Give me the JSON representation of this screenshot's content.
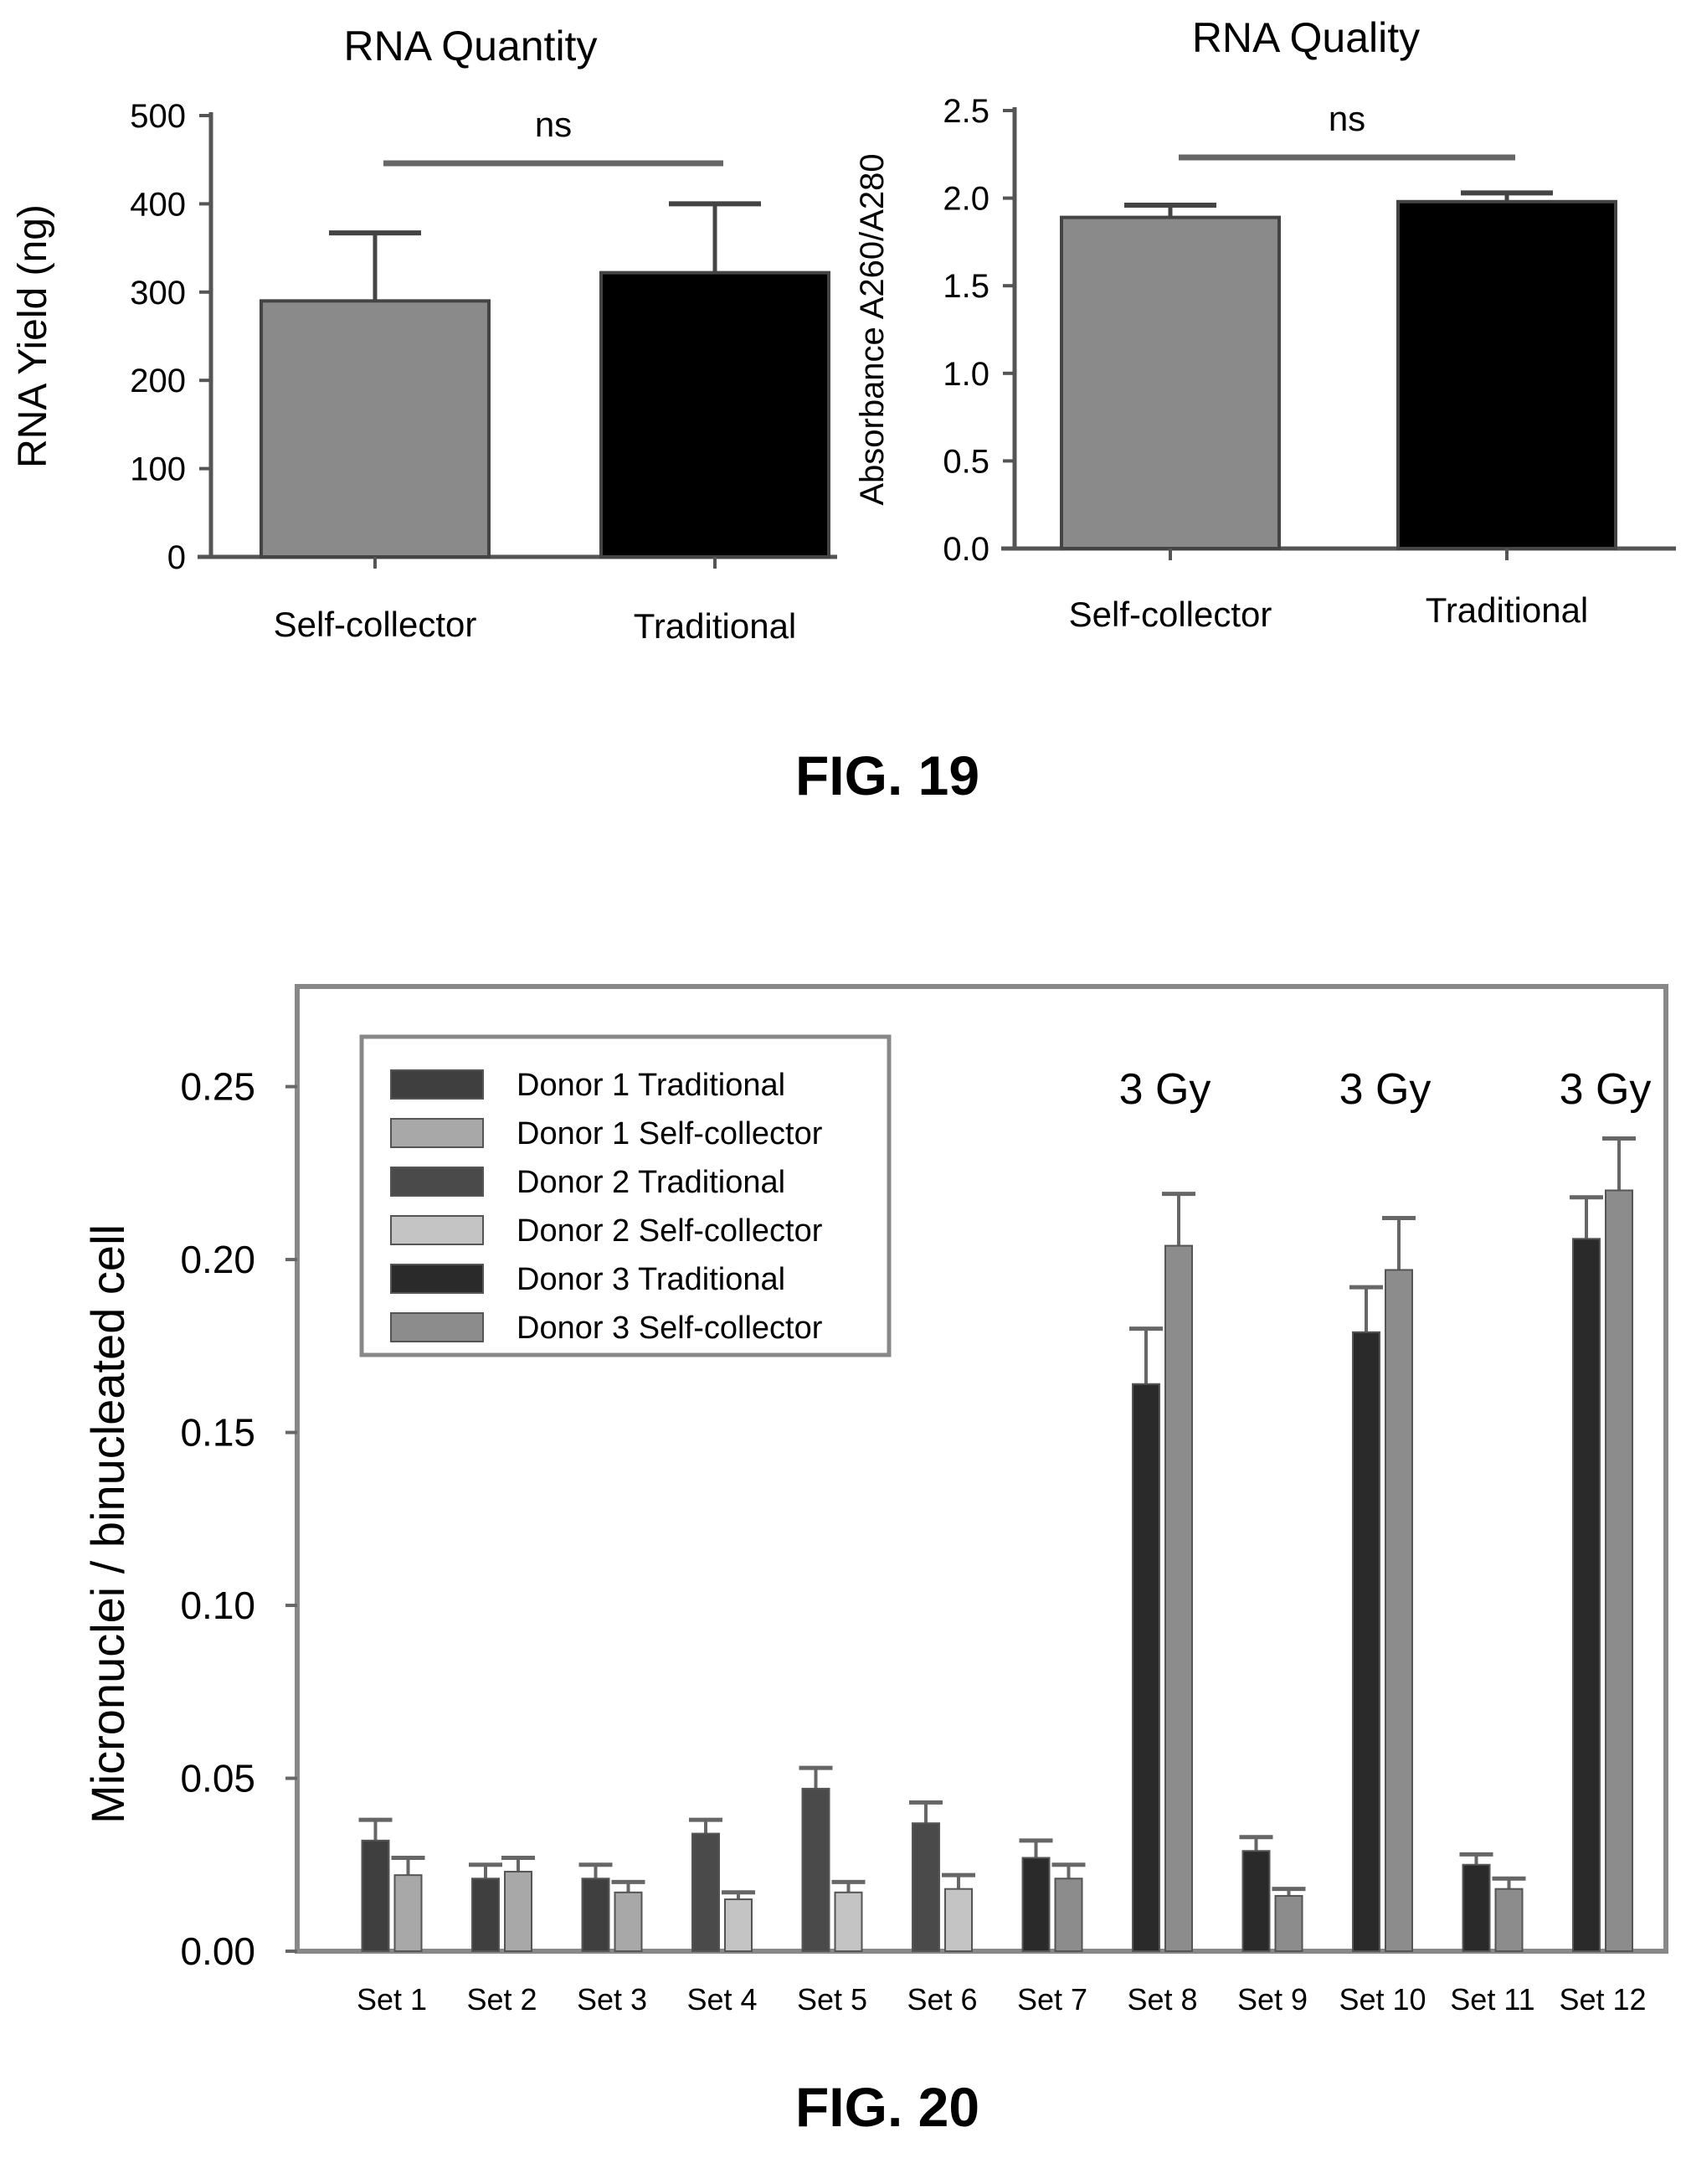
{
  "figures": {
    "fig19_label": "FIG. 19",
    "fig20_label": "FIG. 20"
  },
  "chart_data": [
    {
      "type": "bar",
      "title": "RNA Quantity",
      "ylabel": "RNA Yield (ng)",
      "xlabel": "",
      "categories": [
        "Self-collector",
        "Traditional"
      ],
      "values": [
        290,
        322
      ],
      "errors": [
        77,
        78
      ],
      "colors": [
        "#8a8a8a",
        "#000000"
      ],
      "ylim": [
        0,
        500
      ],
      "yticks": [
        0,
        100,
        200,
        300,
        400,
        500
      ],
      "ytick_labels": [
        "0",
        "100",
        "200",
        "300",
        "400",
        "500"
      ],
      "annotation": "ns"
    },
    {
      "type": "bar",
      "title": "RNA Quality",
      "ylabel": "Absorbance A260/A280",
      "xlabel": "",
      "categories": [
        "Self-collector",
        "Traditional"
      ],
      "values": [
        1.89,
        1.98
      ],
      "errors": [
        0.07,
        0.05
      ],
      "colors": [
        "#8a8a8a",
        "#000000"
      ],
      "ylim": [
        0,
        2.5
      ],
      "yticks": [
        0,
        0.5,
        1.0,
        1.5,
        2.0,
        2.5
      ],
      "ytick_labels": [
        "0.0",
        "0.5",
        "1.0",
        "1.5",
        "2.0",
        "2.5"
      ],
      "annotation": "ns"
    },
    {
      "type": "bar",
      "title": "",
      "xlabel": "",
      "ylabel": "Micronuclei / binucleated cell",
      "ylim": [
        0,
        0.27
      ],
      "yticks": [
        0,
        0.05,
        0.1,
        0.15,
        0.2,
        0.25
      ],
      "ytick_labels": [
        "0.00",
        "0.05",
        "0.10",
        "0.15",
        "0.20",
        "0.25"
      ],
      "legend_position": "top-left",
      "categories": [
        "Set 1",
        "Set 2",
        "Set 3",
        "Set 4",
        "Set 5",
        "Set 6",
        "Set 7",
        "Set 8",
        "Set 9",
        "Set 10",
        "Set 11",
        "Set 12"
      ],
      "series": [
        {
          "name": "Donor 1 Traditional",
          "color": "#3f3f3f"
        },
        {
          "name": "Donor 1 Self-collector",
          "color": "#a8a8a8"
        },
        {
          "name": "Donor 2 Traditional",
          "color": "#4a4a4a"
        },
        {
          "name": "Donor 2 Self-collector",
          "color": "#c4c4c4"
        },
        {
          "name": "Donor 3 Traditional",
          "color": "#2a2a2a"
        },
        {
          "name": "Donor 3 Self-collector",
          "color": "#8c8c8c"
        }
      ],
      "values": [
        {
          "traditional": 0.032,
          "traditional_error": 0.006,
          "self_collector": 0.022,
          "self_collector_error": 0.005,
          "series": [
            0,
            1
          ]
        },
        {
          "traditional": 0.021,
          "traditional_error": 0.004,
          "self_collector": 0.023,
          "self_collector_error": 0.004,
          "series": [
            0,
            1
          ]
        },
        {
          "traditional": 0.021,
          "traditional_error": 0.004,
          "self_collector": 0.017,
          "self_collector_error": 0.003,
          "series": [
            0,
            1
          ]
        },
        {
          "traditional": 0.034,
          "traditional_error": 0.004,
          "self_collector": 0.015,
          "self_collector_error": 0.002,
          "series": [
            2,
            3
          ]
        },
        {
          "traditional": 0.047,
          "traditional_error": 0.006,
          "self_collector": 0.017,
          "self_collector_error": 0.003,
          "series": [
            2,
            3
          ]
        },
        {
          "traditional": 0.037,
          "traditional_error": 0.006,
          "self_collector": 0.018,
          "self_collector_error": 0.004,
          "series": [
            2,
            3
          ]
        },
        {
          "traditional": 0.027,
          "traditional_error": 0.005,
          "self_collector": 0.021,
          "self_collector_error": 0.004,
          "series": [
            4,
            5
          ]
        },
        {
          "traditional": 0.164,
          "traditional_error": 0.016,
          "self_collector": 0.204,
          "self_collector_error": 0.015,
          "series": [
            4,
            5
          ]
        },
        {
          "traditional": 0.029,
          "traditional_error": 0.004,
          "self_collector": 0.016,
          "self_collector_error": 0.002,
          "series": [
            4,
            5
          ]
        },
        {
          "traditional": 0.179,
          "traditional_error": 0.013,
          "self_collector": 0.197,
          "self_collector_error": 0.015,
          "series": [
            4,
            5
          ]
        },
        {
          "traditional": 0.025,
          "traditional_error": 0.003,
          "self_collector": 0.018,
          "self_collector_error": 0.003,
          "series": [
            4,
            5
          ]
        },
        {
          "traditional": 0.206,
          "traditional_error": 0.012,
          "self_collector": 0.22,
          "self_collector_error": 0.015,
          "series": [
            4,
            5
          ]
        }
      ],
      "annotations": [
        {
          "category": "Set 8",
          "text": "3 Gy"
        },
        {
          "category": "Set 10",
          "text": "3 Gy"
        },
        {
          "category": "Set 12",
          "text": "3 Gy"
        }
      ]
    }
  ]
}
